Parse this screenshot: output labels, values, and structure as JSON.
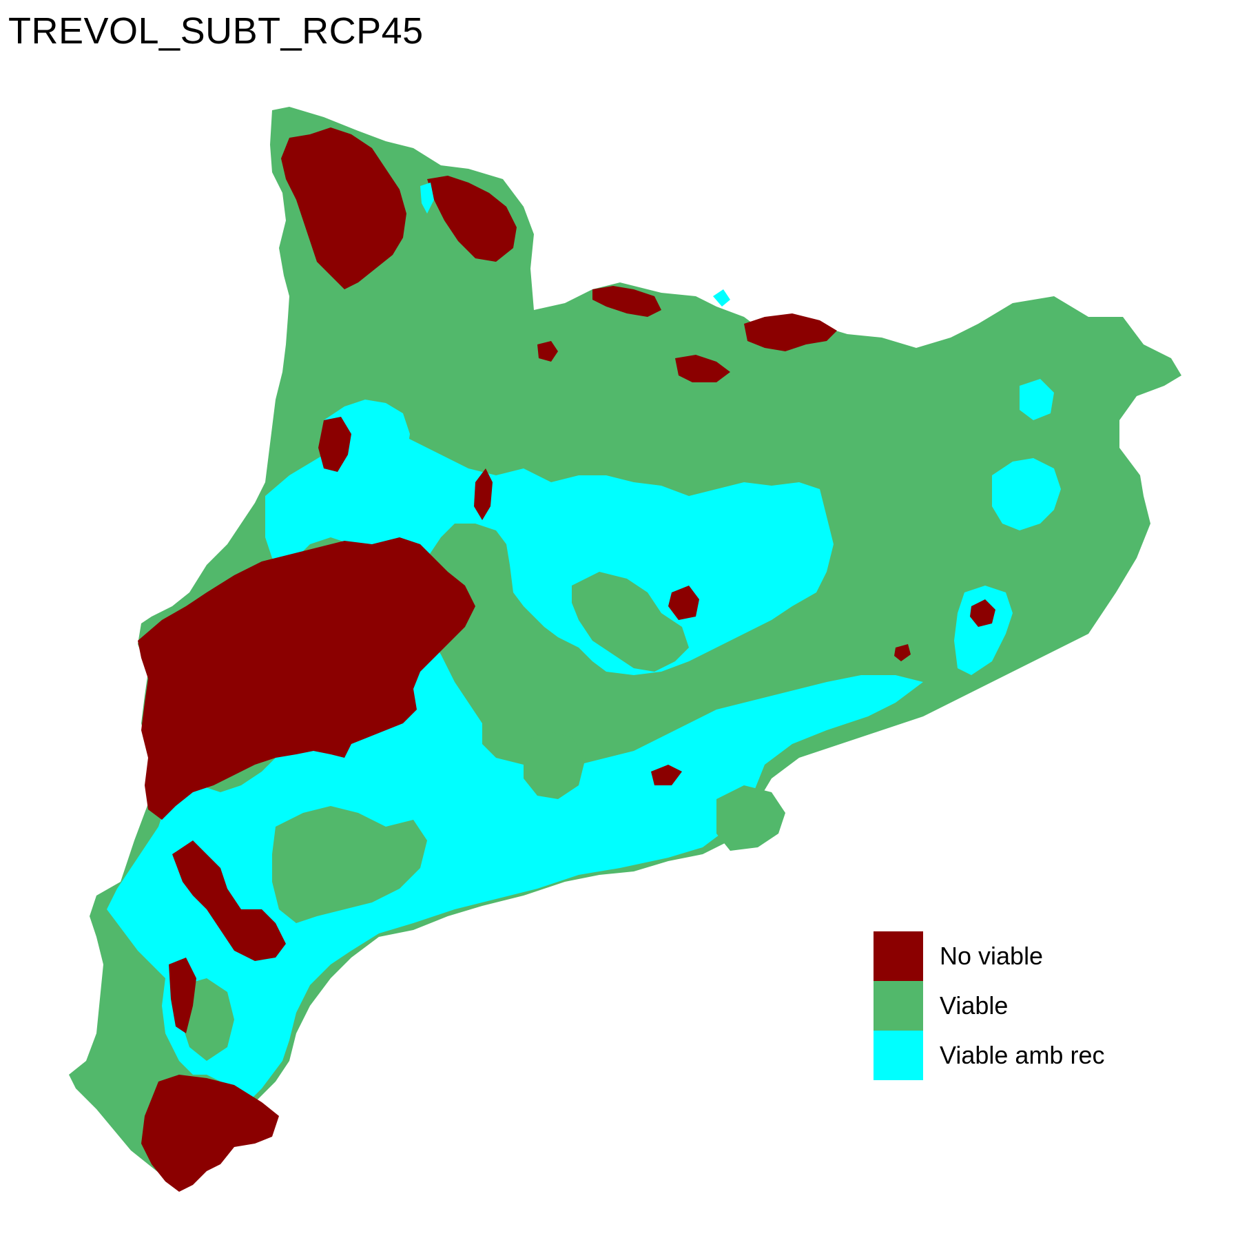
{
  "title": "TREVOL_SUBT_RCP45",
  "colors": {
    "no_viable": "#8B0000",
    "viable": "#52B86B",
    "viable_amb_rec": "#00FFFF",
    "background": "#FFFFFF"
  },
  "legend": {
    "items": [
      {
        "label": "No viable",
        "color": "#8B0000"
      },
      {
        "label": "Viable",
        "color": "#52B86B"
      },
      {
        "label": "Viable amb rec",
        "color": "#00FFFF"
      }
    ]
  }
}
